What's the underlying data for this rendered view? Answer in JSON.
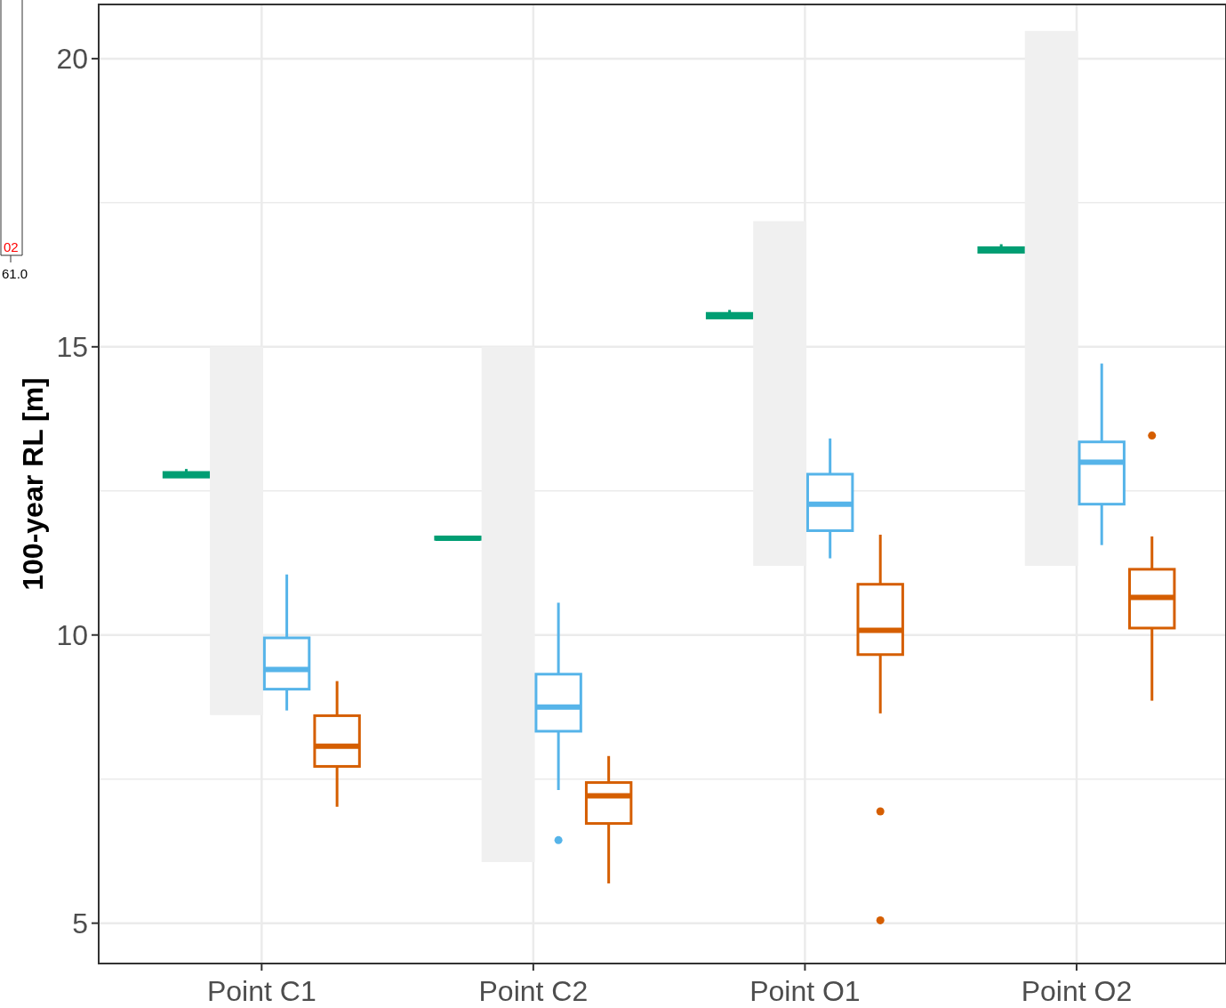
{
  "chart_data": {
    "type": "box",
    "ylabel": "100-year RL [m]",
    "categories": [
      "Point C1",
      "Point C2",
      "Point O1",
      "Point O2"
    ],
    "ylim": [
      4.3,
      20.94
    ],
    "yticks": [
      5,
      {
        "value": 7.5,
        "label": null
      },
      10,
      {
        "value": 12.5,
        "label": null
      },
      15,
      {
        "value": 17.5,
        "label": null
      },
      20
    ],
    "grid": true,
    "annotations": [
      "02",
      "61.0"
    ],
    "series": [
      {
        "color": "#009e73",
        "boxes": [
          {
            "low": 12.74,
            "q1": 12.74,
            "median": 12.78,
            "q3": 12.82,
            "high": 12.88
          },
          {
            "low": 11.66,
            "q1": 11.66,
            "median": 11.68,
            "q3": 11.7,
            "high": 11.7
          },
          {
            "low": 15.5,
            "q1": 15.5,
            "median": 15.54,
            "q3": 15.58,
            "high": 15.64
          },
          {
            "low": 16.64,
            "q1": 16.64,
            "median": 16.68,
            "q3": 16.72,
            "high": 16.78
          }
        ]
      },
      {
        "type": "bar",
        "color": "#f0f0f0",
        "base": [
          8.61,
          6.06,
          11.2,
          11.2
        ],
        "values": [
          6.39,
          8.94,
          5.98,
          9.28
        ]
      },
      {
        "color": "#56b4e9",
        "boxes": [
          {
            "low": 8.69,
            "q1": 9.06,
            "median": 9.4,
            "q3": 9.95,
            "high": 11.05
          },
          {
            "low": 7.31,
            "q1": 8.33,
            "median": 8.75,
            "q3": 9.32,
            "high": 10.56,
            "outliers": [
              6.44
            ]
          },
          {
            "low": 11.33,
            "q1": 11.81,
            "median": 12.27,
            "q3": 12.79,
            "high": 13.41
          },
          {
            "low": 11.56,
            "q1": 12.27,
            "median": 13.0,
            "q3": 13.35,
            "high": 14.71
          }
        ]
      },
      {
        "color": "#d55e00",
        "boxes": [
          {
            "low": 7.02,
            "q1": 7.72,
            "median": 8.07,
            "q3": 8.6,
            "high": 9.2
          },
          {
            "low": 5.69,
            "q1": 6.73,
            "median": 7.21,
            "q3": 7.44,
            "high": 7.9
          },
          {
            "low": 8.64,
            "q1": 9.66,
            "median": 10.08,
            "q3": 10.88,
            "high": 11.74,
            "outliers": [
              6.94,
              5.05
            ]
          },
          {
            "low": 8.86,
            "q1": 10.12,
            "median": 10.65,
            "q3": 11.14,
            "high": 11.71,
            "outliers": [
              13.46
            ]
          }
        ]
      }
    ]
  }
}
